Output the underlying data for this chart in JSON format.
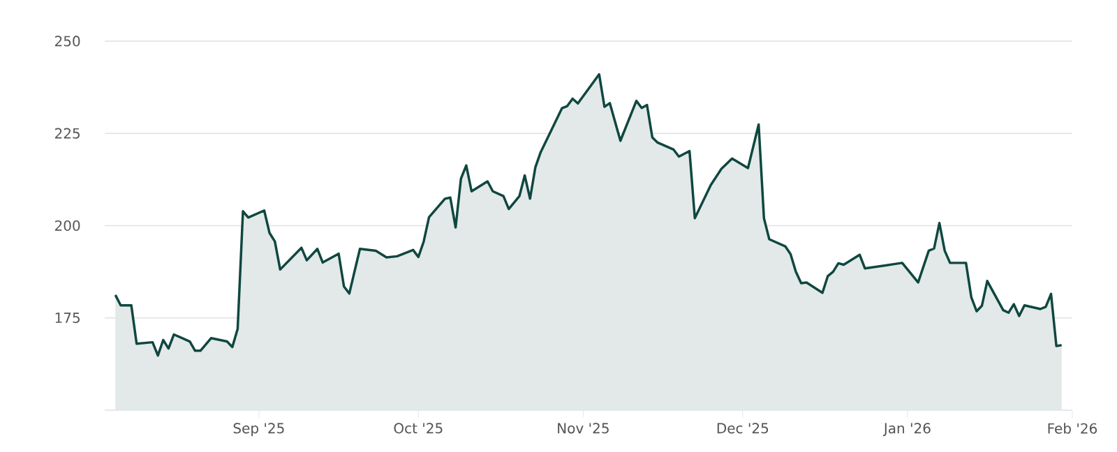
{
  "chart_data": {
    "type": "area",
    "x": [
      "2025-08-05",
      "2025-08-06",
      "2025-08-08",
      "2025-08-09",
      "2025-08-12",
      "2025-08-13",
      "2025-08-14",
      "2025-08-15",
      "2025-08-16",
      "2025-08-19",
      "2025-08-20",
      "2025-08-21",
      "2025-08-23",
      "2025-08-26",
      "2025-08-27",
      "2025-08-28",
      "2025-08-29",
      "2025-08-30",
      "2025-09-02",
      "2025-09-03",
      "2025-09-04",
      "2025-09-05",
      "2025-09-09",
      "2025-09-10",
      "2025-09-12",
      "2025-09-13",
      "2025-09-16",
      "2025-09-17",
      "2025-09-18",
      "2025-09-20",
      "2025-09-23",
      "2025-09-25",
      "2025-09-27",
      "2025-09-30",
      "2025-10-01",
      "2025-10-02",
      "2025-10-03",
      "2025-10-06",
      "2025-10-07",
      "2025-10-08",
      "2025-10-09",
      "2025-10-10",
      "2025-10-11",
      "2025-10-14",
      "2025-10-15",
      "2025-10-17",
      "2025-10-18",
      "2025-10-20",
      "2025-10-21",
      "2025-10-22",
      "2025-10-23",
      "2025-10-24",
      "2025-10-28",
      "2025-10-29",
      "2025-10-30",
      "2025-10-31",
      "2025-11-04",
      "2025-11-05",
      "2025-11-06",
      "2025-11-08",
      "2025-11-11",
      "2025-11-12",
      "2025-11-13",
      "2025-11-14",
      "2025-11-15",
      "2025-11-18",
      "2025-11-19",
      "2025-11-21",
      "2025-11-22",
      "2025-11-25",
      "2025-11-27",
      "2025-11-29",
      "2025-12-02",
      "2025-12-04",
      "2025-12-05",
      "2025-12-06",
      "2025-12-09",
      "2025-12-10",
      "2025-12-11",
      "2025-12-12",
      "2025-12-13",
      "2025-12-16",
      "2025-12-17",
      "2025-12-18",
      "2025-12-19",
      "2025-12-20",
      "2025-12-23",
      "2025-12-24",
      "2025-12-31",
      "2026-01-03",
      "2026-01-05",
      "2026-01-06",
      "2026-01-07",
      "2026-01-08",
      "2026-01-09",
      "2026-01-12",
      "2026-01-13",
      "2026-01-14",
      "2026-01-15",
      "2026-01-16",
      "2026-01-19",
      "2026-01-20",
      "2026-01-21",
      "2026-01-22",
      "2026-01-23",
      "2026-01-26",
      "2026-01-27",
      "2026-01-28",
      "2026-01-29",
      "2026-01-30"
    ],
    "series": [
      {
        "color": "#0f4740",
        "values": [
          181.2,
          178.4,
          178.4,
          168,
          168.4,
          164.8,
          169,
          166.7,
          170.5,
          168.6,
          166.1,
          166.1,
          169.5,
          168.6,
          167.1,
          172,
          203.9,
          202.2,
          204.1,
          198,
          195.7,
          188.1,
          194,
          190.6,
          193.7,
          190,
          192.4,
          183.5,
          181.6,
          193.7,
          193.2,
          191.4,
          191.7,
          193.4,
          191.5,
          195.7,
          202.3,
          207.3,
          207.6,
          199.5,
          212.7,
          216.3,
          209.3,
          212,
          209.3,
          208,
          204.5,
          208,
          213.6,
          207.3,
          215.8,
          219.9,
          231.8,
          232.4,
          234.4,
          233.1,
          241,
          232.2,
          233.2,
          223,
          233.8,
          231.9,
          232.7,
          223.9,
          222.5,
          220.6,
          218.7,
          220.2,
          202,
          211,
          215.4,
          218.2,
          215.6,
          227.4,
          202,
          196.3,
          194.4,
          192.3,
          187.5,
          184.4,
          184.6,
          181.8,
          186.3,
          187.5,
          189.8,
          189.4,
          192.1,
          188.4,
          189.9,
          184.6,
          193.2,
          193.8,
          200.7,
          193.2,
          189.9,
          189.9,
          180.6,
          176.8,
          178.3,
          185,
          177.1,
          176.4,
          178.7,
          175.5,
          178.4,
          177.4,
          178,
          181.5,
          167.4,
          167.6
        ]
      }
    ],
    "xlim": [
      "2025-08-03",
      "2026-02-01"
    ],
    "xticks": [
      {
        "value": "2025-09-01",
        "label": "Sep '25"
      },
      {
        "value": "2025-10-01",
        "label": "Oct '25"
      },
      {
        "value": "2025-11-01",
        "label": "Nov '25"
      },
      {
        "value": "2025-12-01",
        "label": "Dec '25"
      },
      {
        "value": "2026-01-01",
        "label": "Jan '26"
      },
      {
        "value": "2026-02-01",
        "label": "Feb '26"
      }
    ],
    "ylim": [
      150,
      250
    ],
    "yticks": [
      175,
      200,
      225,
      250
    ],
    "grid": "y"
  }
}
